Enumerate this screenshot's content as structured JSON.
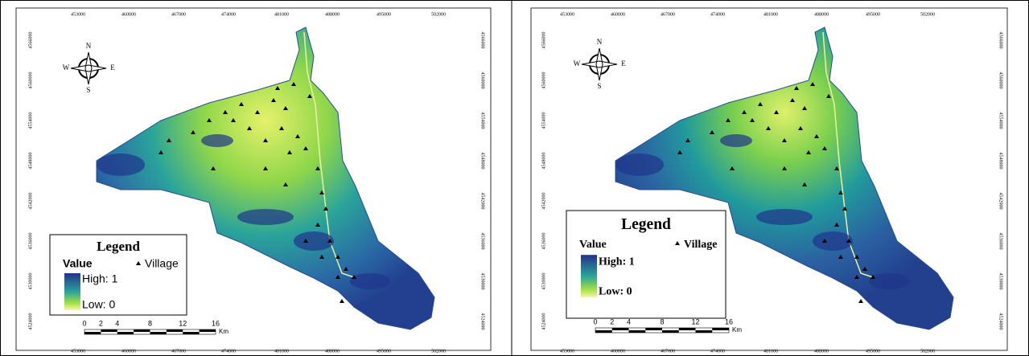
{
  "grid_labels": {
    "x": [
      "453000",
      "460000",
      "467000",
      "474000",
      "481000",
      "488000",
      "495000",
      "502000"
    ],
    "y": [
      "4566000",
      "4560000",
      "4554000",
      "4548000",
      "4542000",
      "4536000",
      "4530000",
      "4524000"
    ]
  },
  "compass": {
    "n": "N",
    "s": "S",
    "e": "E",
    "w": "W"
  },
  "panels": [
    {
      "legend": {
        "title": "Legend",
        "value": "Value",
        "village": "Village",
        "high": "High: 1",
        "low": "Low: 0"
      },
      "scale": {
        "ticks": [
          "0",
          "2",
          "4",
          "8",
          "12",
          "16"
        ],
        "unit": "Km"
      }
    },
    {
      "legend": {
        "title": "Legend",
        "value": "Value",
        "village": "Village",
        "high": "High: 1",
        "low": "Low: 0"
      },
      "scale": {
        "ticks": [
          "0",
          "2",
          "4",
          "8",
          "12",
          "16"
        ],
        "unit": "Km"
      }
    }
  ]
}
